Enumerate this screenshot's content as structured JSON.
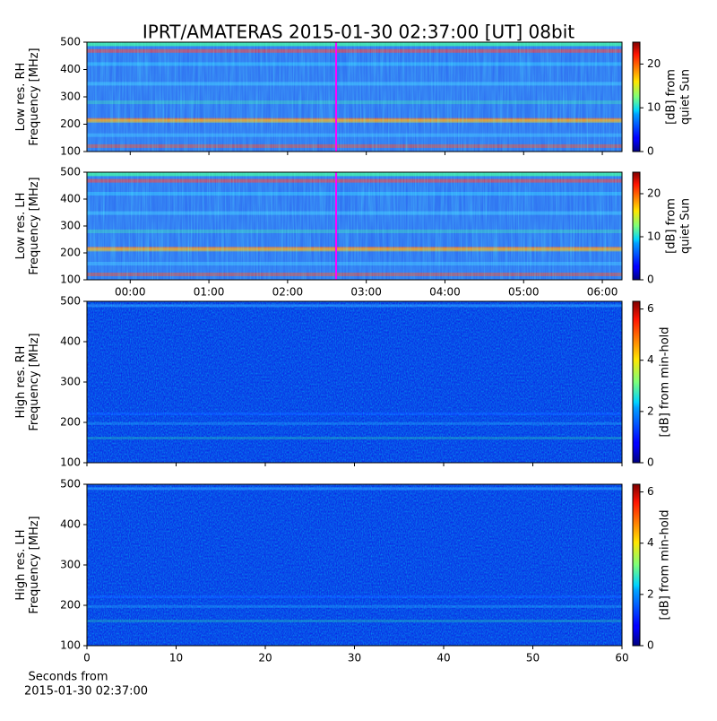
{
  "title": "IPRT/AMATERAS 2015-01-30 02:37:00 [UT]   08bit",
  "chart_data": [
    {
      "type": "heatmap",
      "ylabel": [
        "Low res. RH",
        "Frequency [MHz]"
      ],
      "ylim": [
        100,
        500
      ],
      "yticks": [
        100,
        200,
        300,
        400,
        500
      ],
      "cursor_x": 2.6167,
      "cursor_color": "#ff00ff",
      "colorbar_label": [
        "[dB] from",
        "quiet Sun"
      ],
      "clim": [
        0,
        25
      ],
      "cticks": [
        0,
        10,
        20
      ]
    },
    {
      "type": "heatmap",
      "ylabel": [
        "Low res. LH",
        "Frequency [MHz]"
      ],
      "ylim": [
        100,
        500
      ],
      "yticks": [
        100,
        200,
        300,
        400,
        500
      ],
      "xlim": [
        -0.55,
        6.25
      ],
      "xticks": [
        {
          "value": 0,
          "label": "00:00"
        },
        {
          "value": 1,
          "label": "01:00"
        },
        {
          "value": 2,
          "label": "02:00"
        },
        {
          "value": 3,
          "label": "03:00"
        },
        {
          "value": 4,
          "label": "04:00"
        },
        {
          "value": 5,
          "label": "05:00"
        },
        {
          "value": 6,
          "label": "06:00"
        }
      ],
      "cursor_x": 2.6167,
      "cursor_color": "#ff00ff",
      "colorbar_label": [
        "[dB] from",
        "quiet Sun"
      ],
      "clim": [
        0,
        25
      ],
      "cticks": [
        0,
        10,
        20
      ]
    },
    {
      "type": "heatmap",
      "ylabel": [
        "High res. RH",
        "Frequency [MHz]"
      ],
      "ylim": [
        100,
        500
      ],
      "yticks": [
        100,
        200,
        300,
        400,
        500
      ],
      "colorbar_label": [
        "[dB] from min-hold"
      ],
      "clim": [
        0,
        6.3
      ],
      "cticks": [
        0,
        2,
        4,
        6
      ]
    },
    {
      "type": "heatmap",
      "ylabel": [
        "High res. LH",
        "Frequency [MHz]"
      ],
      "ylim": [
        100,
        500
      ],
      "yticks": [
        100,
        200,
        300,
        400,
        500
      ],
      "xlim": [
        0,
        60
      ],
      "xticks": [
        0,
        10,
        20,
        30,
        40,
        50,
        60
      ],
      "xlabel": [
        "Seconds from",
        "2015-01-30 02:37:00"
      ],
      "colorbar_label": [
        "[dB] from min-hold"
      ],
      "clim": [
        0,
        6.3
      ],
      "cticks": [
        0,
        2,
        4,
        6
      ]
    }
  ]
}
